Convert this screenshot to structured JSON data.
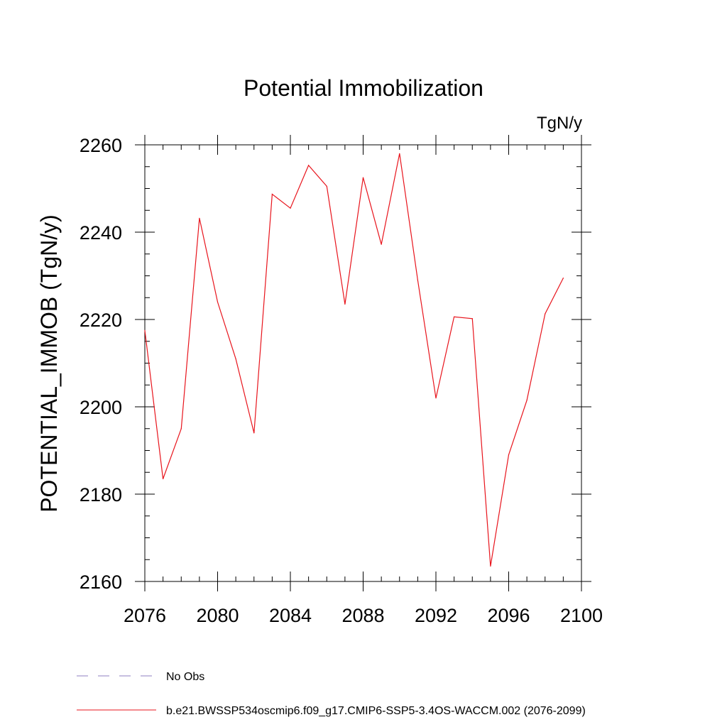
{
  "chart_data": {
    "type": "line",
    "title": "Potential Immobilization",
    "units_label": "TgN/y",
    "ylabel": "POTENTIAL_IMMOB  (TgN/y)",
    "xlabel": "",
    "xlim": [
      2076,
      2100
    ],
    "ylim": [
      2160,
      2260
    ],
    "x_ticks": [
      2076,
      2080,
      2084,
      2088,
      2092,
      2096,
      2100
    ],
    "y_ticks": [
      2160,
      2180,
      2200,
      2220,
      2240,
      2260
    ],
    "grid": false,
    "legend_position": "bottom-left",
    "series": [
      {
        "name": "b.e21.BWSSP534oscmip6.f09_g17.CMIP6-SSP5-3.4OS-WACCM.002 (2076-2099)",
        "color": "#e8141c",
        "style": "solid",
        "x": [
          2076,
          2077,
          2078,
          2079,
          2080,
          2081,
          2082,
          2083,
          2084,
          2085,
          2086,
          2087,
          2088,
          2089,
          2090,
          2091,
          2092,
          2093,
          2094,
          2095,
          2096,
          2097,
          2098,
          2099
        ],
        "values": [
          2217.5,
          2183.5,
          2195.0,
          2243.2,
          2224.0,
          2211.0,
          2194.0,
          2248.7,
          2245.5,
          2255.3,
          2250.5,
          2223.5,
          2252.5,
          2237.2,
          2258.0,
          2229.0,
          2202.0,
          2220.6,
          2220.2,
          2163.5,
          2189.0,
          2201.5,
          2221.3,
          2229.5
        ]
      }
    ],
    "legend": [
      {
        "label": "No Obs",
        "color": "#8f7fc0",
        "style": "dashed"
      },
      {
        "label": "b.e21.BWSSP534oscmip6.f09_g17.CMIP6-SSP5-3.4OS-WACCM.002 (2076-2099)",
        "color": "#e8141c",
        "style": "solid"
      }
    ]
  }
}
